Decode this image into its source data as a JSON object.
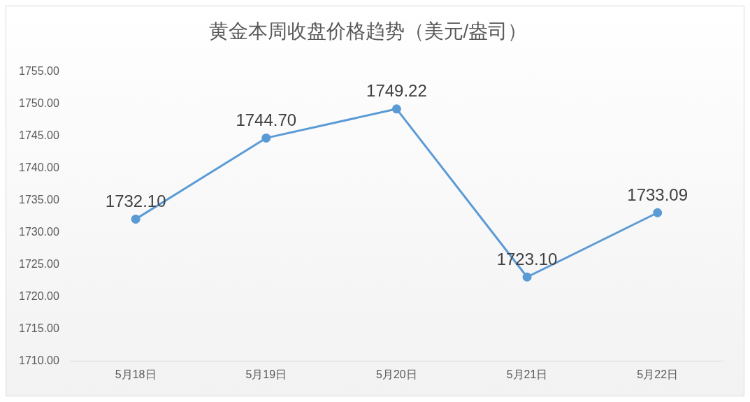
{
  "chart_data": {
    "type": "line",
    "title": "黄金本周收盘价格趋势（美元/盎司）",
    "categories": [
      "5月18日",
      "5月19日",
      "5月20日",
      "5月21日",
      "5月22日"
    ],
    "series": [
      {
        "color": "#5b9bd5",
        "values": [
          1732.1,
          1744.7,
          1749.22,
          1723.1,
          1733.09
        ],
        "value_labels": [
          "1732.10",
          "1744.70",
          "1749.22",
          "1723.10",
          "1733.09"
        ]
      }
    ],
    "ylim": [
      1710,
      1755
    ],
    "yticks": [
      {
        "value": 1710,
        "label": "1710.00"
      },
      {
        "value": 1715,
        "label": "1715.00"
      },
      {
        "value": 1720,
        "label": "1720.00"
      },
      {
        "value": 1725,
        "label": "1725.00"
      },
      {
        "value": 1730,
        "label": "1730.00"
      },
      {
        "value": 1735,
        "label": "1735.00"
      },
      {
        "value": 1740,
        "label": "1740.00"
      },
      {
        "value": 1745,
        "label": "1745.00"
      },
      {
        "value": 1750,
        "label": "1750.00"
      },
      {
        "value": 1755,
        "label": "1755.00"
      }
    ],
    "grid": false,
    "legend": false,
    "marker": "circle",
    "line_style": "solid"
  }
}
